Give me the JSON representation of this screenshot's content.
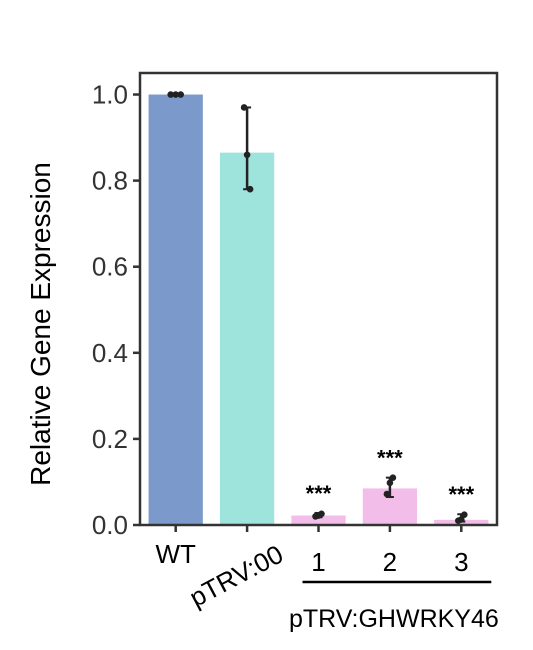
{
  "chart_data": {
    "type": "bar",
    "title": "",
    "xlabel": "",
    "ylabel": "Relative Gene Expression",
    "ylim": [
      0,
      1.05
    ],
    "yticks": [
      0.0,
      0.2,
      0.4,
      0.6,
      0.8,
      1.0
    ],
    "ytick_labels": [
      "0.0",
      "0.2",
      "0.4",
      "0.6",
      "0.8",
      "1.0"
    ],
    "grid": false,
    "categories": [
      "WT",
      "pTRV:00",
      "1",
      "2",
      "3"
    ],
    "values": [
      1.0,
      0.865,
      0.022,
      0.085,
      0.012
    ],
    "error_low": [
      1.0,
      0.78,
      0.018,
      0.065,
      0.008
    ],
    "error_high": [
      1.0,
      0.97,
      0.028,
      0.11,
      0.025
    ],
    "points": [
      [
        1.0,
        1.0,
        1.0
      ],
      [
        0.97,
        0.86,
        0.78
      ],
      [
        0.02,
        0.022,
        0.026
      ],
      [
        0.072,
        0.098,
        0.11
      ],
      [
        0.01,
        0.013,
        0.024
      ]
    ],
    "significance": [
      "",
      "",
      "***",
      "***",
      "***"
    ],
    "colors": [
      "#7b9acb",
      "#9fe3dd",
      "#f2bde8",
      "#f2bde8",
      "#f2bde8"
    ],
    "group_label": "pTRV:GHWRKY46",
    "group_categories": [
      "1",
      "2",
      "3"
    ]
  }
}
